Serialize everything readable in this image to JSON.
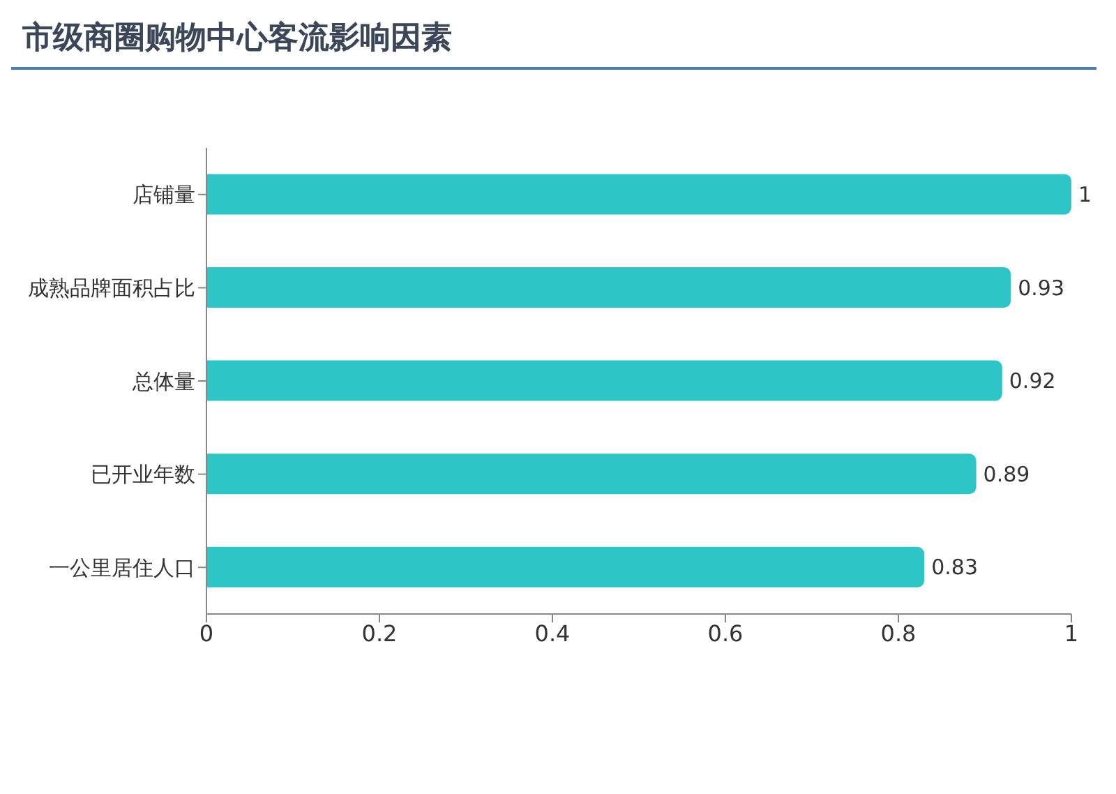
{
  "chart_data": {
    "type": "bar",
    "orientation": "horizontal",
    "title": "市级商圈购物中心客流影响因素",
    "categories": [
      "店铺量",
      "成熟品牌面积占比",
      "总体量",
      "已开业年数",
      "一公里居住人口"
    ],
    "values": [
      1,
      0.93,
      0.92,
      0.89,
      0.83
    ],
    "color": "#2ec5c7",
    "xlim": [
      0,
      1
    ],
    "xticks": [
      0,
      0.2,
      0.4,
      0.6,
      0.8,
      1
    ],
    "grid": false,
    "legend": false,
    "data_labels": true
  }
}
